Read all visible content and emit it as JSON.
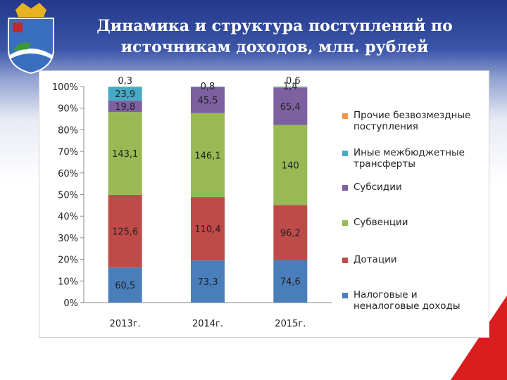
{
  "chart_data": {
    "type": "stacked_bar_100",
    "title": "Динамика и структура поступлений по источникам доходов, млн. рублей",
    "categories": [
      "2013г.",
      "2014г.",
      "2015г."
    ],
    "series": [
      {
        "name": "Налоговые и неналоговые доходы",
        "color": "#4a7ebb",
        "values": [
          60.5,
          73.3,
          74.6
        ],
        "value_labels": [
          "60,5",
          "73,3",
          "74,6"
        ]
      },
      {
        "name": "Дотации",
        "color": "#be4b48",
        "values": [
          125.6,
          110.4,
          96.2
        ],
        "value_labels": [
          "125,6",
          "110,4",
          "96,2"
        ]
      },
      {
        "name": "Субвенции",
        "color": "#98b954",
        "values": [
          143.1,
          146.1,
          140
        ],
        "value_labels": [
          "143,1",
          "146,1",
          "140"
        ]
      },
      {
        "name": "Субсидии",
        "color": "#7d60a0",
        "values": [
          19.8,
          45.5,
          65.4
        ],
        "value_labels": [
          "19,8",
          "45,5",
          "65,4"
        ]
      },
      {
        "name": "Иные межбюджетные трансферты",
        "color": "#46aac5",
        "values": [
          23.9,
          0.8,
          1.4
        ],
        "value_labels": [
          "23,9",
          "0,8",
          "1,4"
        ]
      },
      {
        "name": "Прочие безвозмездные поступления",
        "color": "#f79646",
        "values": [
          0.3,
          null,
          0.6
        ],
        "value_labels": [
          "0,3",
          null,
          "0,6"
        ]
      }
    ],
    "ylim": [
      0,
      100
    ],
    "yticks": [
      {
        "value": 0,
        "label": "0%"
      },
      {
        "value": 10,
        "label": "10%"
      },
      {
        "value": 20,
        "label": "20%"
      },
      {
        "value": 30,
        "label": "30%"
      },
      {
        "value": 40,
        "label": "40%"
      },
      {
        "value": 50,
        "label": "50%"
      },
      {
        "value": 60,
        "label": "60%"
      },
      {
        "value": 70,
        "label": "70%"
      },
      {
        "value": 80,
        "label": "80%"
      },
      {
        "value": 90,
        "label": "90%"
      },
      {
        "value": 100,
        "label": "100%"
      }
    ],
    "legend": "right"
  }
}
